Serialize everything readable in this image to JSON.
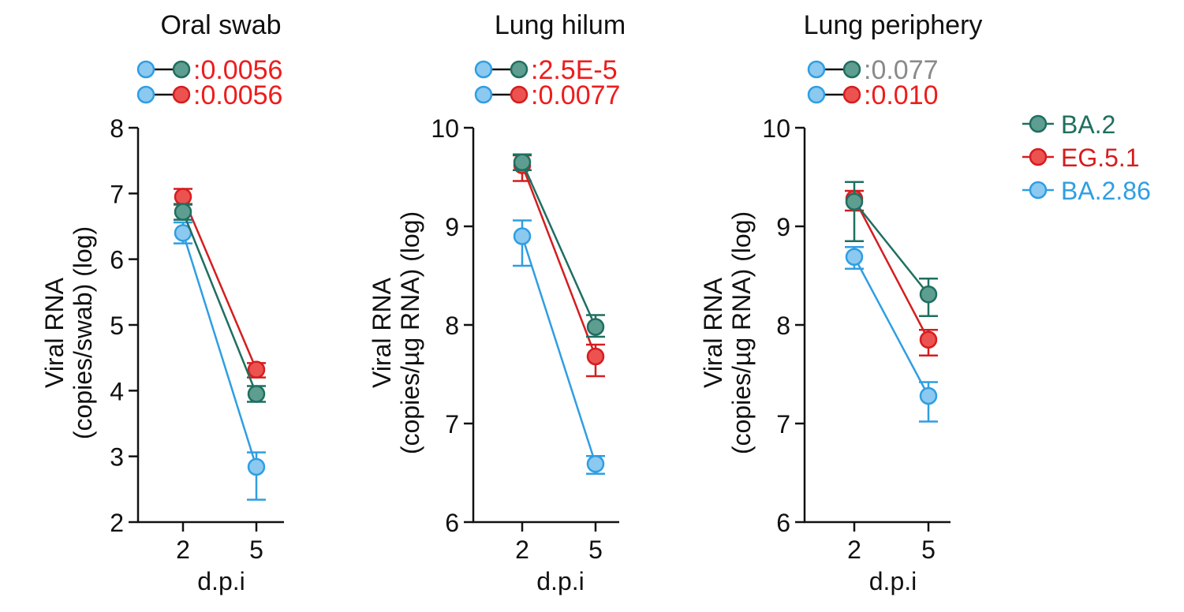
{
  "colors": {
    "ba2_fill": "#5e9e91",
    "ba2_stroke": "#1f6f60",
    "eg51_fill": "#ec5250",
    "eg51_stroke": "#d51d1f",
    "ba286_fill": "#8cc9f0",
    "ba286_stroke": "#2f9ee2",
    "pval_significant": "#ee1c1c",
    "pval_ns": "#8a8a8a",
    "axis": "#111111"
  },
  "legend": [
    {
      "label": "BA.2",
      "color_key": "ba2"
    },
    {
      "label": "EG.5.1",
      "color_key": "eg51"
    },
    {
      "label": "BA.2.86",
      "color_key": "ba286"
    }
  ],
  "chart_data": [
    {
      "type": "line",
      "title": "Oral swab",
      "xlabel": "d.p.i",
      "ylabel": [
        "Viral RNA",
        "(copies/swab) (log)"
      ],
      "x": [
        "2",
        "5"
      ],
      "ylim": [
        2,
        8
      ],
      "yticks": [
        "2",
        "3",
        "4",
        "5",
        "6",
        "7",
        "8"
      ],
      "pvalues": [
        {
          "pair": [
            "BA.2.86",
            "BA.2"
          ],
          "value": ":0.0056",
          "significant": true
        },
        {
          "pair": [
            "BA.2.86",
            "EG.5.1"
          ],
          "value": ":0.0056",
          "significant": true
        }
      ],
      "series": [
        {
          "name": "BA.2",
          "color_key": "ba2",
          "values": [
            6.72,
            3.95
          ],
          "err_low": [
            0.12,
            0.12
          ],
          "err_high": [
            0.12,
            0.12
          ]
        },
        {
          "name": "EG.5.1",
          "color_key": "eg51",
          "values": [
            6.95,
            4.32
          ],
          "err_low": [
            0.12,
            0.12
          ],
          "err_high": [
            0.12,
            0.1
          ]
        },
        {
          "name": "BA.2.86",
          "color_key": "ba286",
          "values": [
            6.4,
            2.84
          ],
          "err_low": [
            0.16,
            0.5
          ],
          "err_high": [
            0.16,
            0.22
          ]
        }
      ]
    },
    {
      "type": "line",
      "title": "Lung hilum",
      "xlabel": "d.p.i",
      "ylabel": [
        "Viral RNA",
        "(copies/µg RNA) (log)"
      ],
      "x": [
        "2",
        "5"
      ],
      "ylim": [
        6,
        10
      ],
      "yticks": [
        "6",
        "7",
        "8",
        "9",
        "10"
      ],
      "pvalues": [
        {
          "pair": [
            "BA.2.86",
            "BA.2"
          ],
          "value": ":2.5E-5",
          "significant": true
        },
        {
          "pair": [
            "BA.2.86",
            "EG.5.1"
          ],
          "value": ":0.0077",
          "significant": true
        }
      ],
      "series": [
        {
          "name": "BA.2",
          "color_key": "ba2",
          "values": [
            9.65,
            7.98
          ],
          "err_low": [
            0.08,
            0.1
          ],
          "err_high": [
            0.08,
            0.12
          ]
        },
        {
          "name": "EG.5.1",
          "color_key": "eg51",
          "values": [
            9.62,
            7.68
          ],
          "err_low": [
            0.16,
            0.2
          ],
          "err_high": [
            0.1,
            0.12
          ]
        },
        {
          "name": "BA.2.86",
          "color_key": "ba286",
          "values": [
            8.9,
            6.59
          ],
          "err_low": [
            0.3,
            0.1
          ],
          "err_high": [
            0.16,
            0.08
          ]
        }
      ]
    },
    {
      "type": "line",
      "title": "Lung periphery",
      "xlabel": "d.p.i",
      "ylabel": [
        "Viral RNA",
        "(copies/µg RNA) (log)"
      ],
      "x": [
        "2",
        "5"
      ],
      "ylim": [
        6,
        10
      ],
      "yticks": [
        "6",
        "7",
        "8",
        "9",
        "10"
      ],
      "pvalues": [
        {
          "pair": [
            "BA.2.86",
            "BA.2"
          ],
          "value": ":0.077",
          "significant": false
        },
        {
          "pair": [
            "BA.2.86",
            "EG.5.1"
          ],
          "value": ":0.010",
          "significant": true
        }
      ],
      "series": [
        {
          "name": "BA.2",
          "color_key": "ba2",
          "values": [
            9.25,
            8.31
          ],
          "err_low": [
            0.4,
            0.22
          ],
          "err_high": [
            0.2,
            0.16
          ]
        },
        {
          "name": "EG.5.1",
          "color_key": "eg51",
          "values": [
            9.28,
            7.85
          ],
          "err_low": [
            0.12,
            0.16
          ],
          "err_high": [
            0.08,
            0.1
          ]
        },
        {
          "name": "BA.2.86",
          "color_key": "ba286",
          "values": [
            8.69,
            7.28
          ],
          "err_low": [
            0.12,
            0.26
          ],
          "err_high": [
            0.1,
            0.14
          ]
        }
      ]
    }
  ]
}
